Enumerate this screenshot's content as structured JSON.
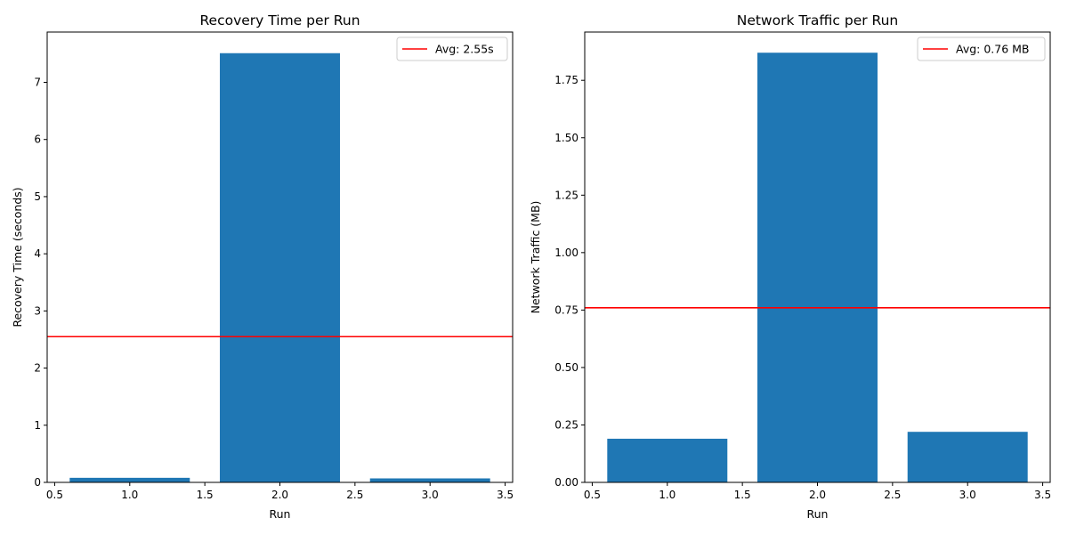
{
  "colors": {
    "bar": "#1f77b4",
    "avg_line": "#ff0000",
    "axis": "#000000",
    "background": "#ffffff"
  },
  "chart_data": [
    {
      "type": "bar",
      "title": "Recovery Time per Run",
      "xlabel": "Run",
      "ylabel": "Recovery Time (seconds)",
      "x": [
        1,
        2,
        3
      ],
      "values": [
        0.08,
        7.51,
        0.07
      ],
      "bar_width": 0.8,
      "xlim": [
        0.45,
        3.55
      ],
      "ylim": [
        0,
        7.88
      ],
      "xticks": [
        "0.5",
        "1.0",
        "1.5",
        "2.0",
        "2.5",
        "3.0",
        "3.5"
      ],
      "yticks": [
        "0",
        "1",
        "2",
        "3",
        "4",
        "5",
        "6",
        "7"
      ],
      "avg_line": {
        "value": 2.55,
        "label": "Avg: 2.55s"
      },
      "legend_position": "top-right",
      "grid": false
    },
    {
      "type": "bar",
      "title": "Network Traffic per Run",
      "xlabel": "Run",
      "ylabel": "Network Traffic (MB)",
      "x": [
        1,
        2,
        3
      ],
      "values": [
        0.19,
        1.87,
        0.22
      ],
      "bar_width": 0.8,
      "xlim": [
        0.45,
        3.55
      ],
      "ylim": [
        0,
        1.96
      ],
      "xticks": [
        "0.5",
        "1.0",
        "1.5",
        "2.0",
        "2.5",
        "3.0",
        "3.5"
      ],
      "yticks": [
        "0.00",
        "0.25",
        "0.50",
        "0.75",
        "1.00",
        "1.25",
        "1.50",
        "1.75"
      ],
      "avg_line": {
        "value": 0.76,
        "label": "Avg: 0.76 MB"
      },
      "legend_position": "top-right",
      "grid": false
    }
  ]
}
